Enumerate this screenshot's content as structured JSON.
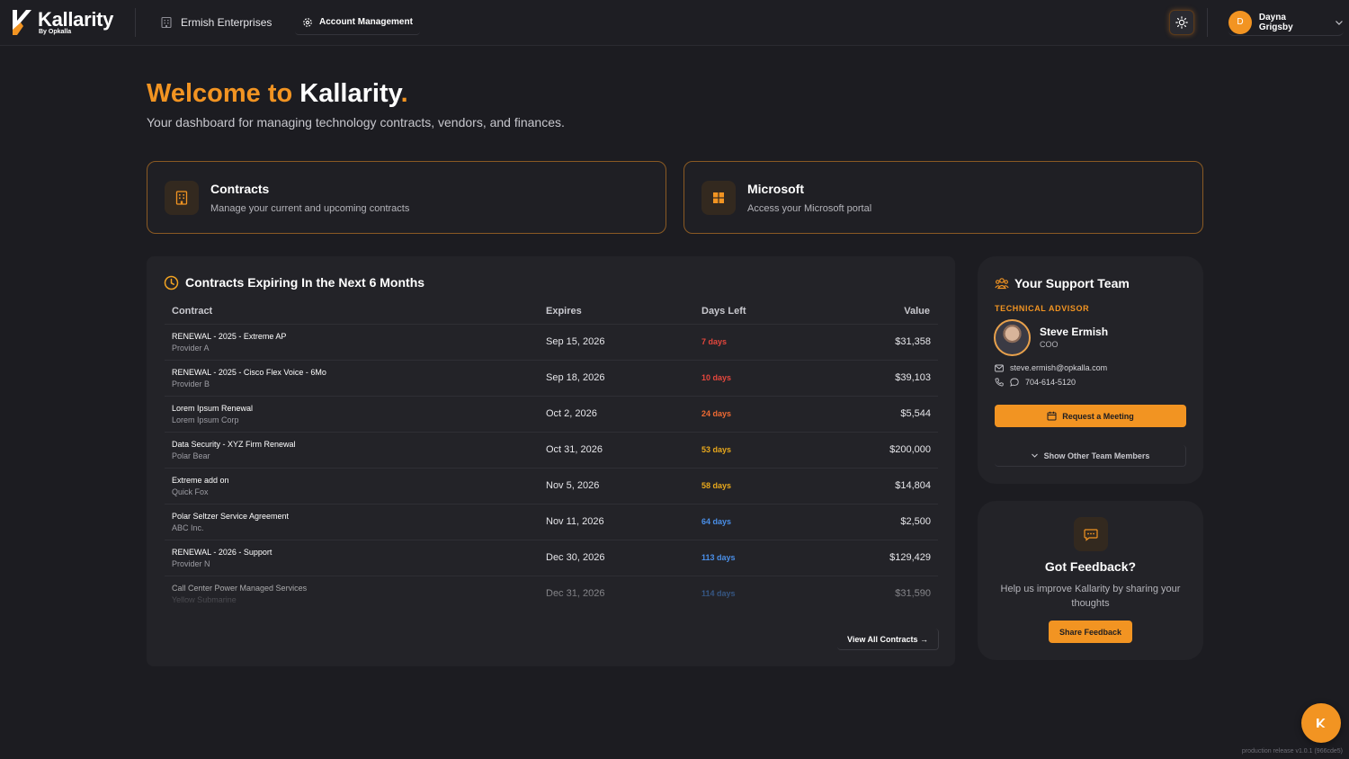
{
  "header": {
    "logo_text": "Kallarity",
    "logo_sub": "By Opkalla",
    "org_name": "Ermish Enterprises",
    "account_label": "Account Management",
    "user_initial": "D",
    "user_name": "Dayna Grigsby"
  },
  "welcome": {
    "prefix": "Welcome to",
    "brand": "Kallarity",
    "dot": ".",
    "subtitle": "Your dashboard for managing technology contracts, vendors, and finances."
  },
  "nav_cards": [
    {
      "title": "Contracts",
      "desc": "Manage your current and upcoming contracts",
      "icon": "building-icon"
    },
    {
      "title": "Microsoft",
      "desc": "Access your Microsoft portal",
      "icon": "windows-grid-icon"
    }
  ],
  "contracts": {
    "title": "Contracts Expiring In the Next 6 Months",
    "columns": {
      "contract": "Contract",
      "expires": "Expires",
      "days_left": "Days Left",
      "value": "Value"
    },
    "rows": [
      {
        "name": "RENEWAL - 2025 - Extreme AP",
        "provider": "Provider A",
        "expires": "Sep 15, 2026",
        "days": "7 days",
        "value": "$31,358",
        "color": "#e5473d"
      },
      {
        "name": "RENEWAL - 2025 - Cisco Flex Voice - 6Mo",
        "provider": "Provider B",
        "expires": "Sep 18, 2026",
        "days": "10 days",
        "value": "$39,103",
        "color": "#e5473d"
      },
      {
        "name": "Lorem Ipsum Renewal",
        "provider": "Lorem Ipsum Corp",
        "expires": "Oct 2, 2026",
        "days": "24 days",
        "value": "$5,544",
        "color": "#ef6a33"
      },
      {
        "name": "Data Security - XYZ Firm Renewal",
        "provider": "Polar Bear",
        "expires": "Oct 31, 2026",
        "days": "53 days",
        "value": "$200,000",
        "color": "#e8a81c"
      },
      {
        "name": "Extreme add on",
        "provider": "Quick Fox",
        "expires": "Nov 5, 2026",
        "days": "58 days",
        "value": "$14,804",
        "color": "#e8a81c"
      },
      {
        "name": "Polar Seltzer Service Agreement",
        "provider": "ABC Inc.",
        "expires": "Nov 11, 2026",
        "days": "64 days",
        "value": "$2,500",
        "color": "#4a8fe8"
      },
      {
        "name": "RENEWAL - 2026 - Support",
        "provider": "Provider N",
        "expires": "Dec 30, 2026",
        "days": "113 days",
        "value": "$129,429",
        "color": "#4a8fe8"
      },
      {
        "name": "Call Center Power Managed Services",
        "provider": "Yellow Submarine",
        "expires": "Dec 31, 2026",
        "days": "114 days",
        "value": "$31,590",
        "color": "#4a8fe8"
      }
    ],
    "view_all": "View All Contracts →"
  },
  "support": {
    "title": "Your Support Team",
    "role": "TECHNICAL ADVISOR",
    "name": "Steve Ermish",
    "position": "COO",
    "email": "steve.ermish@opkalla.com",
    "phone": "704-614-5120",
    "meeting_btn": "Request a Meeting",
    "show_other": "Show Other Team Members"
  },
  "feedback": {
    "title": "Got Feedback?",
    "desc": "Help us improve Kallarity by sharing your thoughts",
    "button": "Share Feedback"
  },
  "version": "production release v1.0.1 (966cde5)",
  "colors": {
    "accent": "#f29422",
    "background": "#1c1c21",
    "panel": "#232328"
  }
}
